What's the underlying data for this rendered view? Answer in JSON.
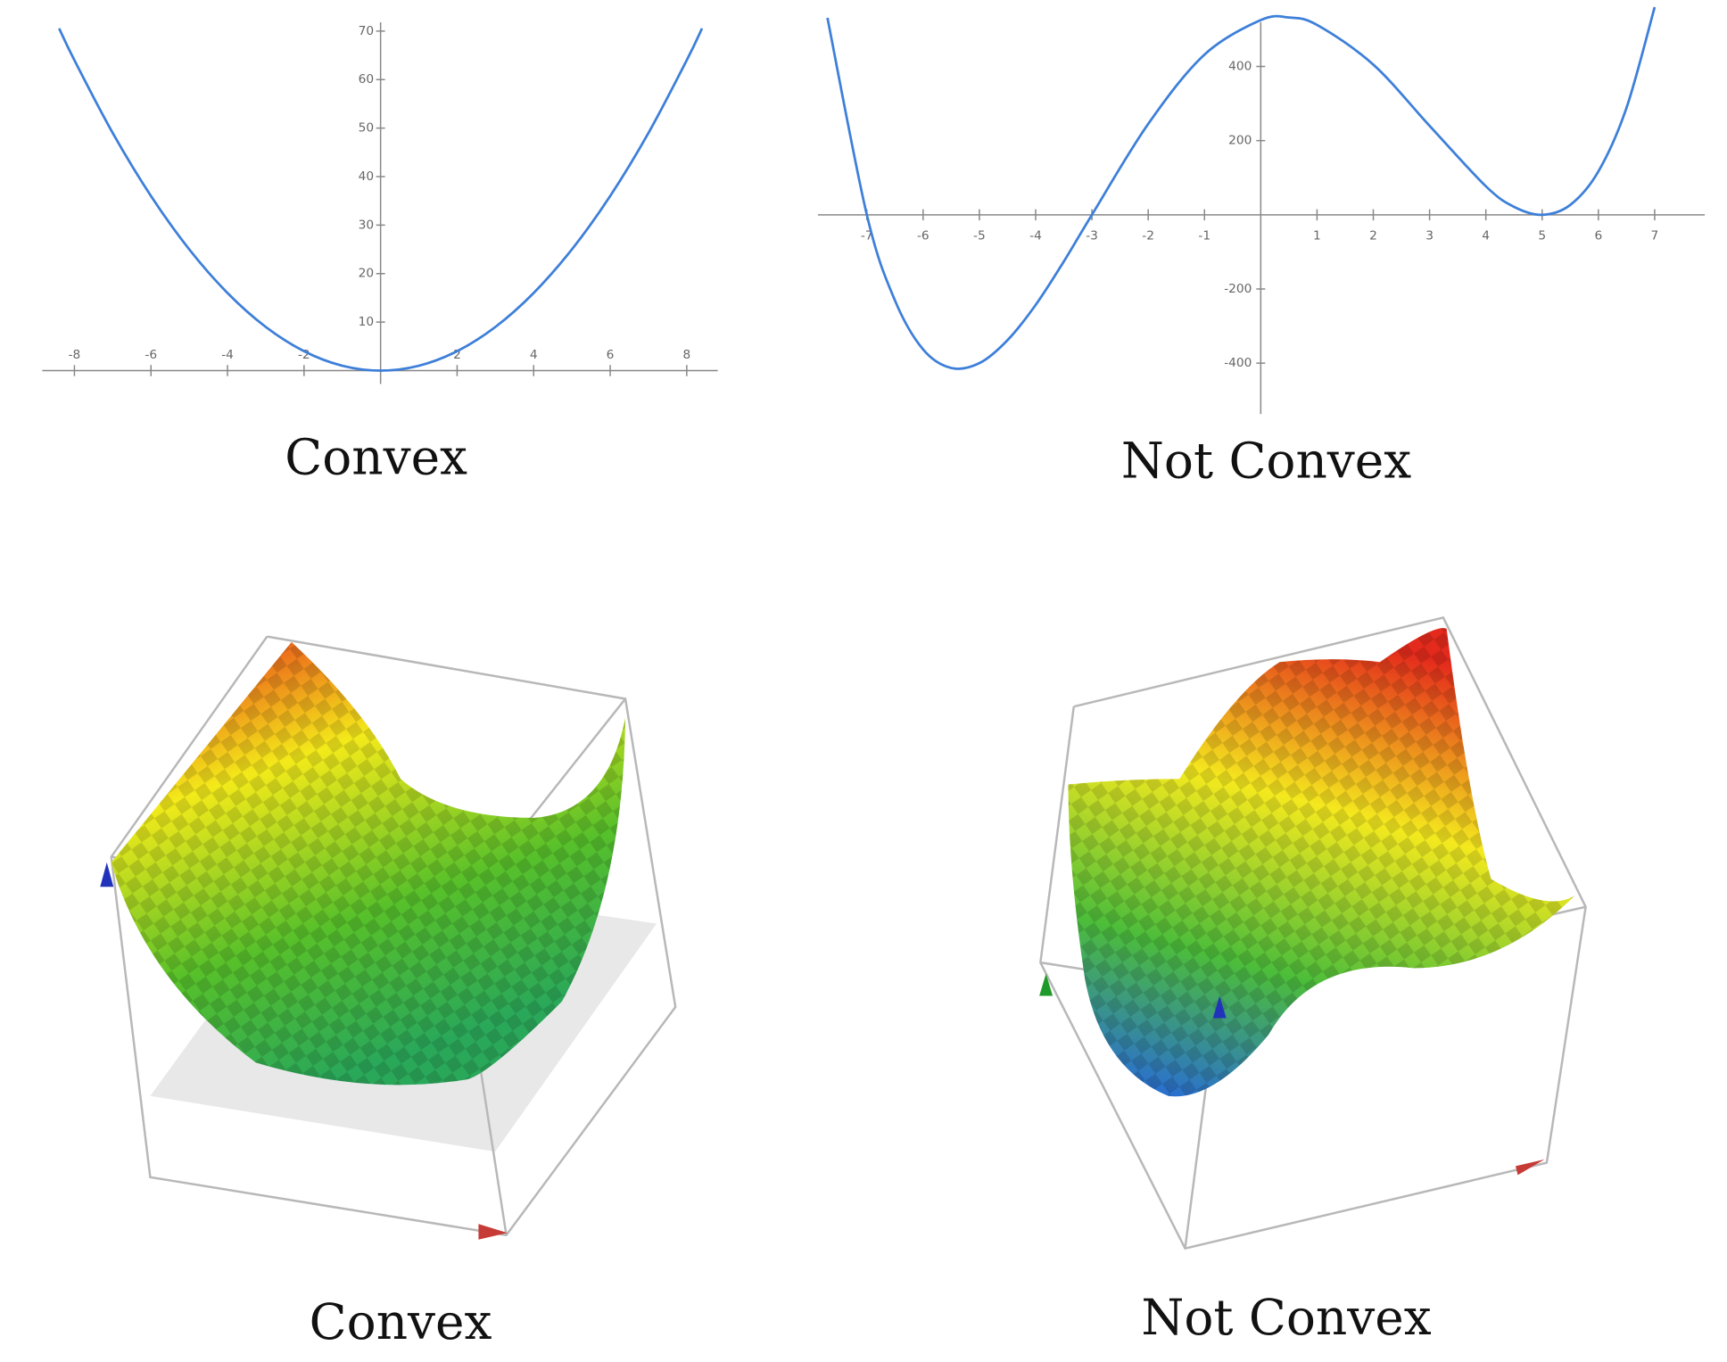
{
  "chart_data": [
    {
      "type": "line",
      "caption": "Convex",
      "color": "#3d7fd9",
      "x": [
        -8.4,
        -8,
        -7,
        -6,
        -5,
        -4,
        -3,
        -2,
        -1,
        0,
        1,
        2,
        3,
        4,
        5,
        6,
        7,
        8,
        8.4
      ],
      "y": [
        70.56,
        64,
        49,
        36,
        25,
        16,
        9,
        4,
        1,
        0,
        1,
        4,
        9,
        16,
        25,
        36,
        49,
        64,
        70.56
      ],
      "xlim": [
        -8.84,
        8.81
      ],
      "ylim": [
        -2.75,
        76.4
      ],
      "xticks": [
        -8,
        -6,
        -4,
        -2,
        2,
        4,
        6,
        8
      ],
      "yticks": [
        10,
        20,
        30,
        40,
        50,
        60,
        70
      ]
    },
    {
      "type": "line",
      "caption": "Not Convex",
      "color": "#3d7fd9",
      "x": [
        -7.7,
        -7,
        -6.5,
        -6,
        -5.5,
        -5,
        -4.5,
        -4,
        -3.5,
        -3,
        -2,
        -1,
        0,
        0.5,
        1,
        2,
        3,
        4,
        4.5,
        5,
        5.5,
        6,
        6.5,
        7
      ],
      "y": [
        531,
        0,
        -231,
        -363,
        -413,
        -400,
        -338,
        -243,
        -126,
        0,
        245,
        432,
        525,
        532,
        512,
        405,
        240,
        77,
        21.6,
        0,
        26.6,
        117,
        288.6,
        560
      ],
      "xlim": [
        -7.87,
        7.89
      ],
      "ylim": [
        -537,
        579
      ],
      "xticks": [
        -7,
        -6,
        -5,
        -4,
        -3,
        -2,
        -1,
        1,
        2,
        3,
        4,
        5,
        6,
        7
      ],
      "yticks": [
        -400,
        -200,
        200,
        400
      ]
    }
  ],
  "surfaces": [
    {
      "caption": "Convex"
    },
    {
      "caption": "Not Convex"
    }
  ]
}
